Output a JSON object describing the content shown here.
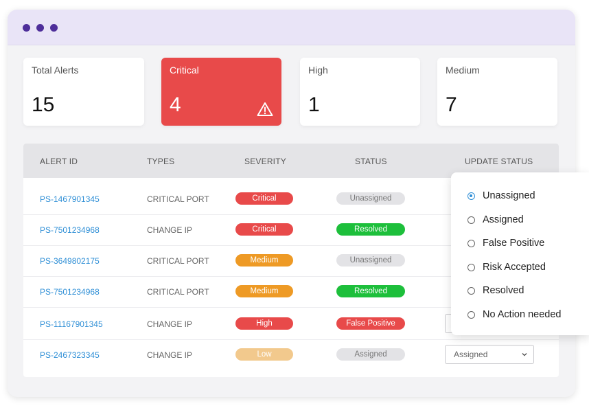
{
  "window": {
    "dots": [
      "dot",
      "dot",
      "dot"
    ]
  },
  "colors": {
    "accent_purple": "#4e2e9a",
    "critical": "#e84a4a",
    "high": "#e84a4a",
    "medium": "#ee9a25",
    "low": "#f2c98d",
    "resolved": "#1dbf3b",
    "unassigned": "#e3e3e6",
    "link": "#2f8fd6"
  },
  "summary": [
    {
      "label": "Total Alerts",
      "value": "15"
    },
    {
      "label": "Critical",
      "value": "4",
      "icon": "warning-icon"
    },
    {
      "label": "High",
      "value": "1"
    },
    {
      "label": "Medium",
      "value": "7"
    }
  ],
  "table": {
    "headers": [
      "ALERT ID",
      "TYPES",
      "SEVERITY",
      "STATUS",
      "UPDATE STATUS"
    ],
    "rows": [
      {
        "id": "PS-1467901345",
        "type": "CRITICAL PORT",
        "severity": "Critical",
        "status": "Unassigned"
      },
      {
        "id": "PS-7501234968",
        "type": "CHANGE IP",
        "severity": "Critical",
        "status": "Resolved"
      },
      {
        "id": "PS-3649802175",
        "type": "CRITICAL PORT",
        "severity": "Medium",
        "status": "Unassigned"
      },
      {
        "id": "PS-7501234968",
        "type": "CRITICAL PORT",
        "severity": "Medium",
        "status": "Resolved"
      },
      {
        "id": "PS-11167901345",
        "type": "CHANGE IP",
        "severity": "High",
        "status": "False Positive"
      },
      {
        "id": "PS-2467323345",
        "type": "CHANGE IP",
        "severity": "Low",
        "status": "Assigned",
        "update_value": "Assigned"
      }
    ]
  },
  "dropdown": {
    "options": [
      "Unassigned",
      "Assigned",
      "False Positive",
      "Risk Accepted",
      "Resolved",
      "No Action needed"
    ],
    "selected": "Unassigned"
  }
}
